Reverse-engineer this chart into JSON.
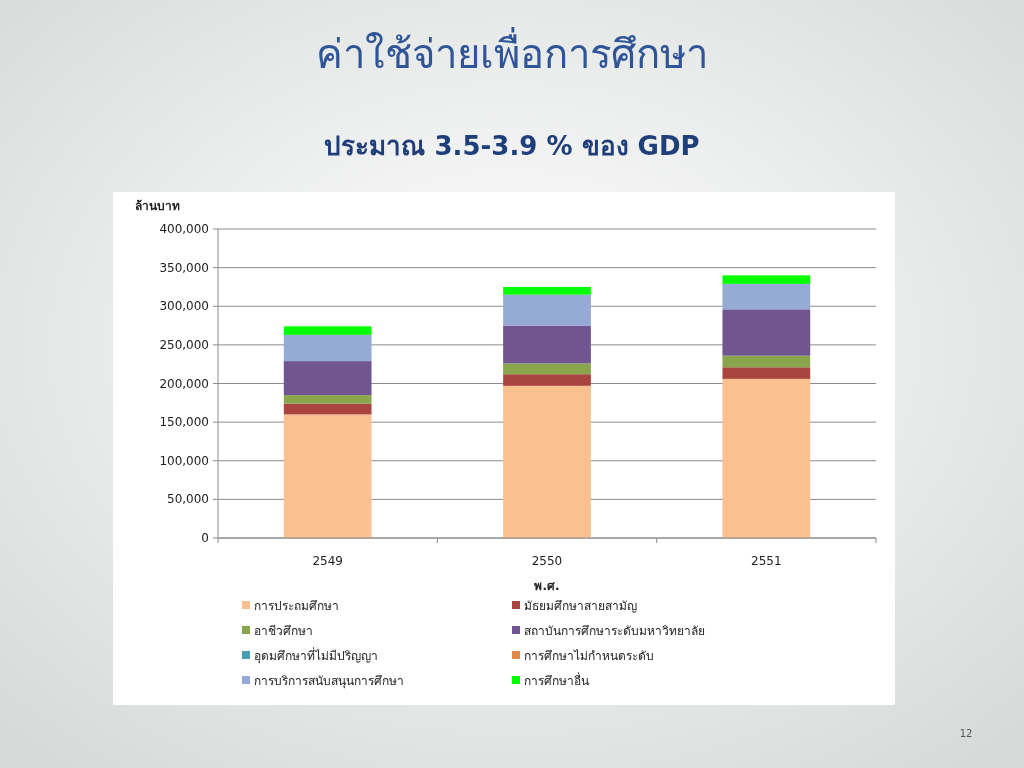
{
  "chart_data": {
    "type": "bar",
    "title": "ค่าใช้จ่ายเพื่อการศึกษา",
    "subtitle": "ประมาณ 3.5-3.9 % ของ GDP",
    "ylabel": "ล้านบาท",
    "xlabel": "พ.ศ.",
    "categories": [
      "2549",
      "2550",
      "2551"
    ],
    "stacked": true,
    "series": [
      {
        "name": "การประถมศึกษา",
        "color": "#fac090",
        "values": [
          160000,
          197000,
          206000
        ]
      },
      {
        "name": "มัธยมศึกษาสายสามัญ",
        "color": "#a9443f",
        "values": [
          14000,
          15000,
          15000
        ]
      },
      {
        "name": "อาชีวศึกษา",
        "color": "#8aa64c",
        "values": [
          11000,
          14000,
          15000
        ]
      },
      {
        "name": "สถาบันการศึกษาระดับมหาวิทยาลัย",
        "color": "#705590",
        "values": [
          44000,
          49000,
          60000
        ]
      },
      {
        "name": "อุดมศึกษาที่ไม่มีปริญญา",
        "color": "#4a9db0",
        "values": [
          null,
          null,
          null
        ]
      },
      {
        "name": "การศึกษาไม่กำหนดระดับ",
        "color": "#e0884a",
        "values": [
          null,
          null,
          null
        ]
      },
      {
        "name": "การบริการสนับสนุนการศึกษา",
        "color": "#95abd3",
        "values": [
          34000,
          40000,
          33000
        ]
      },
      {
        "name": "การศึกษาอื่น",
        "color": "#00ff00",
        "values": [
          11000,
          10000,
          11000
        ]
      }
    ],
    "ylim": [
      0,
      400000
    ],
    "yticks": [
      0,
      {
        "value": 50000,
        "label": "50,000"
      },
      {
        "value": 100000,
        "label": "100,000"
      },
      {
        "value": 150000,
        "label": "150,000"
      },
      {
        "value": 200000,
        "label": "200,000"
      },
      {
        "value": 250000,
        "label": "250,000"
      },
      {
        "value": 300000,
        "label": "300,000"
      },
      {
        "value": 350000,
        "label": "350,000"
      },
      {
        "value": 400000,
        "label": "400,000"
      }
    ],
    "grid": "y",
    "legend": "bottom",
    "annotations": [
      "12"
    ]
  }
}
